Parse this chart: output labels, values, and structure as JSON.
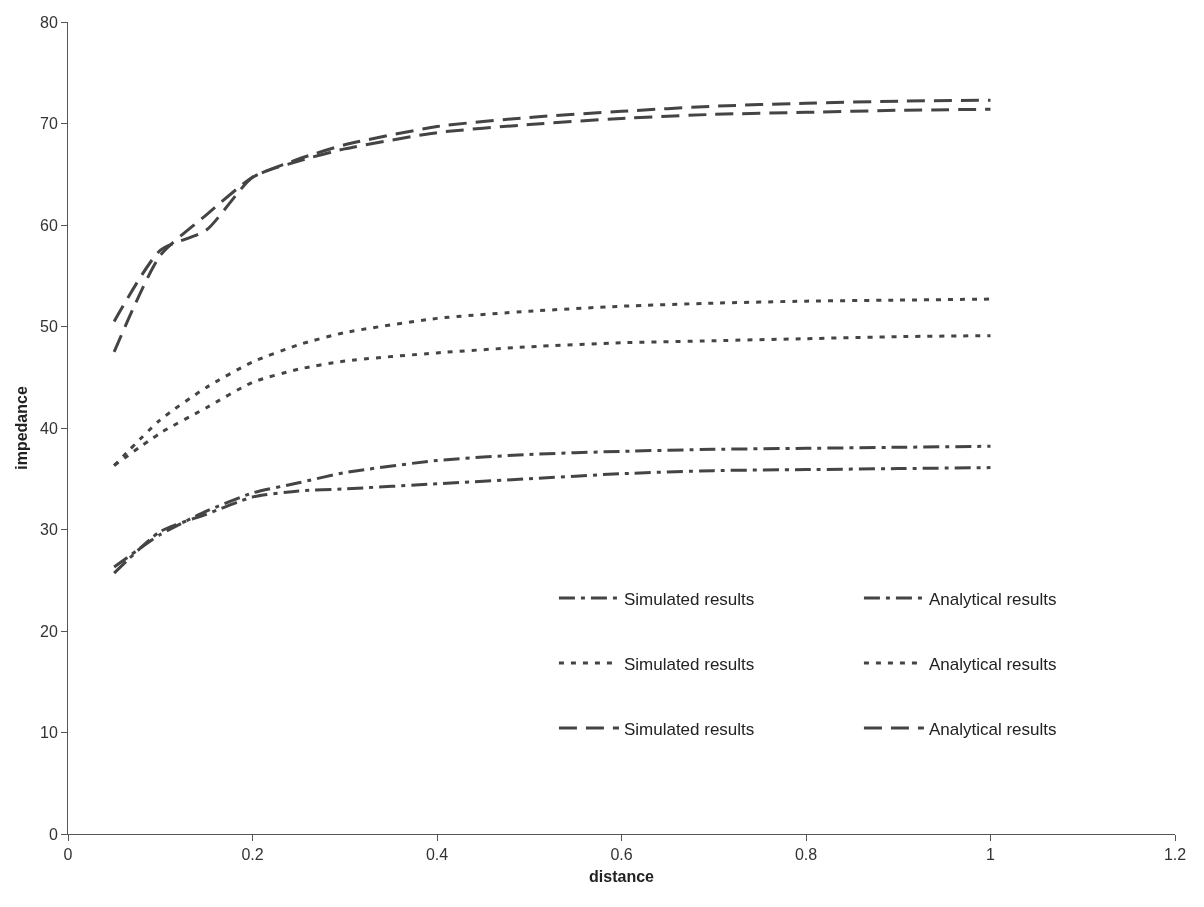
{
  "chart_data": {
    "type": "line",
    "xlabel": "distance",
    "ylabel": "impedance",
    "x": [
      0.05,
      0.1,
      0.15,
      0.2,
      0.25,
      0.3,
      0.4,
      0.5,
      0.6,
      0.7,
      0.8,
      0.9,
      1.0
    ],
    "series": [
      {
        "name": "Simulated results",
        "color": "#444444",
        "line_style": "dashdot",
        "values": [
          26.3,
          29.5,
          31.8,
          33.6,
          34.6,
          35.6,
          36.8,
          37.4,
          37.7,
          37.9,
          38.0,
          38.1,
          38.2
        ]
      },
      {
        "name": "Analytical results",
        "color": "#444444",
        "line_style": "dashdot",
        "values": [
          25.7,
          29.8,
          31.5,
          33.2,
          33.8,
          34.0,
          34.5,
          35.0,
          35.5,
          35.8,
          35.9,
          36.0,
          36.1
        ]
      },
      {
        "name": "Simulated results",
        "color": "#444444",
        "line_style": "dotted",
        "values": [
          36.3,
          40.8,
          44.0,
          46.5,
          48.2,
          49.4,
          50.8,
          51.5,
          52.0,
          52.3,
          52.5,
          52.6,
          52.7
        ]
      },
      {
        "name": "Analytical results",
        "color": "#444444",
        "line_style": "dotted",
        "values": [
          36.3,
          39.5,
          42.0,
          44.5,
          45.8,
          46.6,
          47.4,
          48.0,
          48.4,
          48.6,
          48.8,
          49.0,
          49.1
        ]
      },
      {
        "name": "Simulated results",
        "color": "#444444",
        "line_style": "dashed",
        "values": [
          47.5,
          57.0,
          61.0,
          64.7,
          66.5,
          67.9,
          69.7,
          70.6,
          71.2,
          71.7,
          72.0,
          72.2,
          72.3
        ]
      },
      {
        "name": "Analytical results",
        "color": "#444444",
        "line_style": "dashed",
        "values": [
          50.5,
          57.5,
          59.5,
          64.7,
          66.3,
          67.5,
          69.1,
          69.9,
          70.5,
          70.9,
          71.1,
          71.3,
          71.4
        ]
      }
    ],
    "xlim": [
      0,
      1.2
    ],
    "xticks": [
      0,
      0.2,
      0.4,
      0.6,
      0.8,
      1,
      1.2
    ],
    "ylim": [
      0,
      80
    ],
    "yticks": [
      0,
      10,
      20,
      30,
      40,
      50,
      60,
      70,
      80
    ],
    "legend": "bottom right",
    "marker": "none"
  }
}
